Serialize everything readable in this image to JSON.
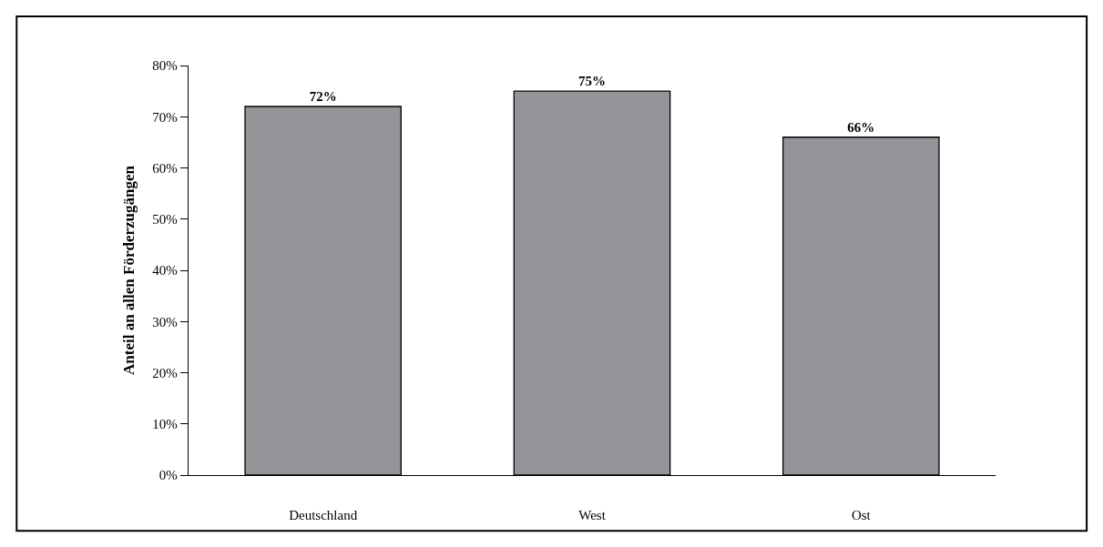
{
  "chart_data": {
    "type": "bar",
    "ylabel": "Anteil an allen Förderzugängen",
    "categories": [
      "Deutschland",
      "West",
      "Ost"
    ],
    "values": [
      72,
      75,
      66
    ],
    "value_labels": [
      "72%",
      "75%",
      "66%"
    ],
    "color": "#939598",
    "ylim": [
      0,
      80
    ],
    "yticks": [
      {
        "value": 0,
        "label": "0%"
      },
      {
        "value": 10,
        "label": "10%"
      },
      {
        "value": 20,
        "label": "20%"
      },
      {
        "value": 30,
        "label": "30%"
      },
      {
        "value": 40,
        "label": "40%"
      },
      {
        "value": 50,
        "label": "50%"
      },
      {
        "value": 60,
        "label": "60%"
      },
      {
        "value": 70,
        "label": "70%"
      },
      {
        "value": 80,
        "label": "80%"
      }
    ],
    "legend": false
  }
}
